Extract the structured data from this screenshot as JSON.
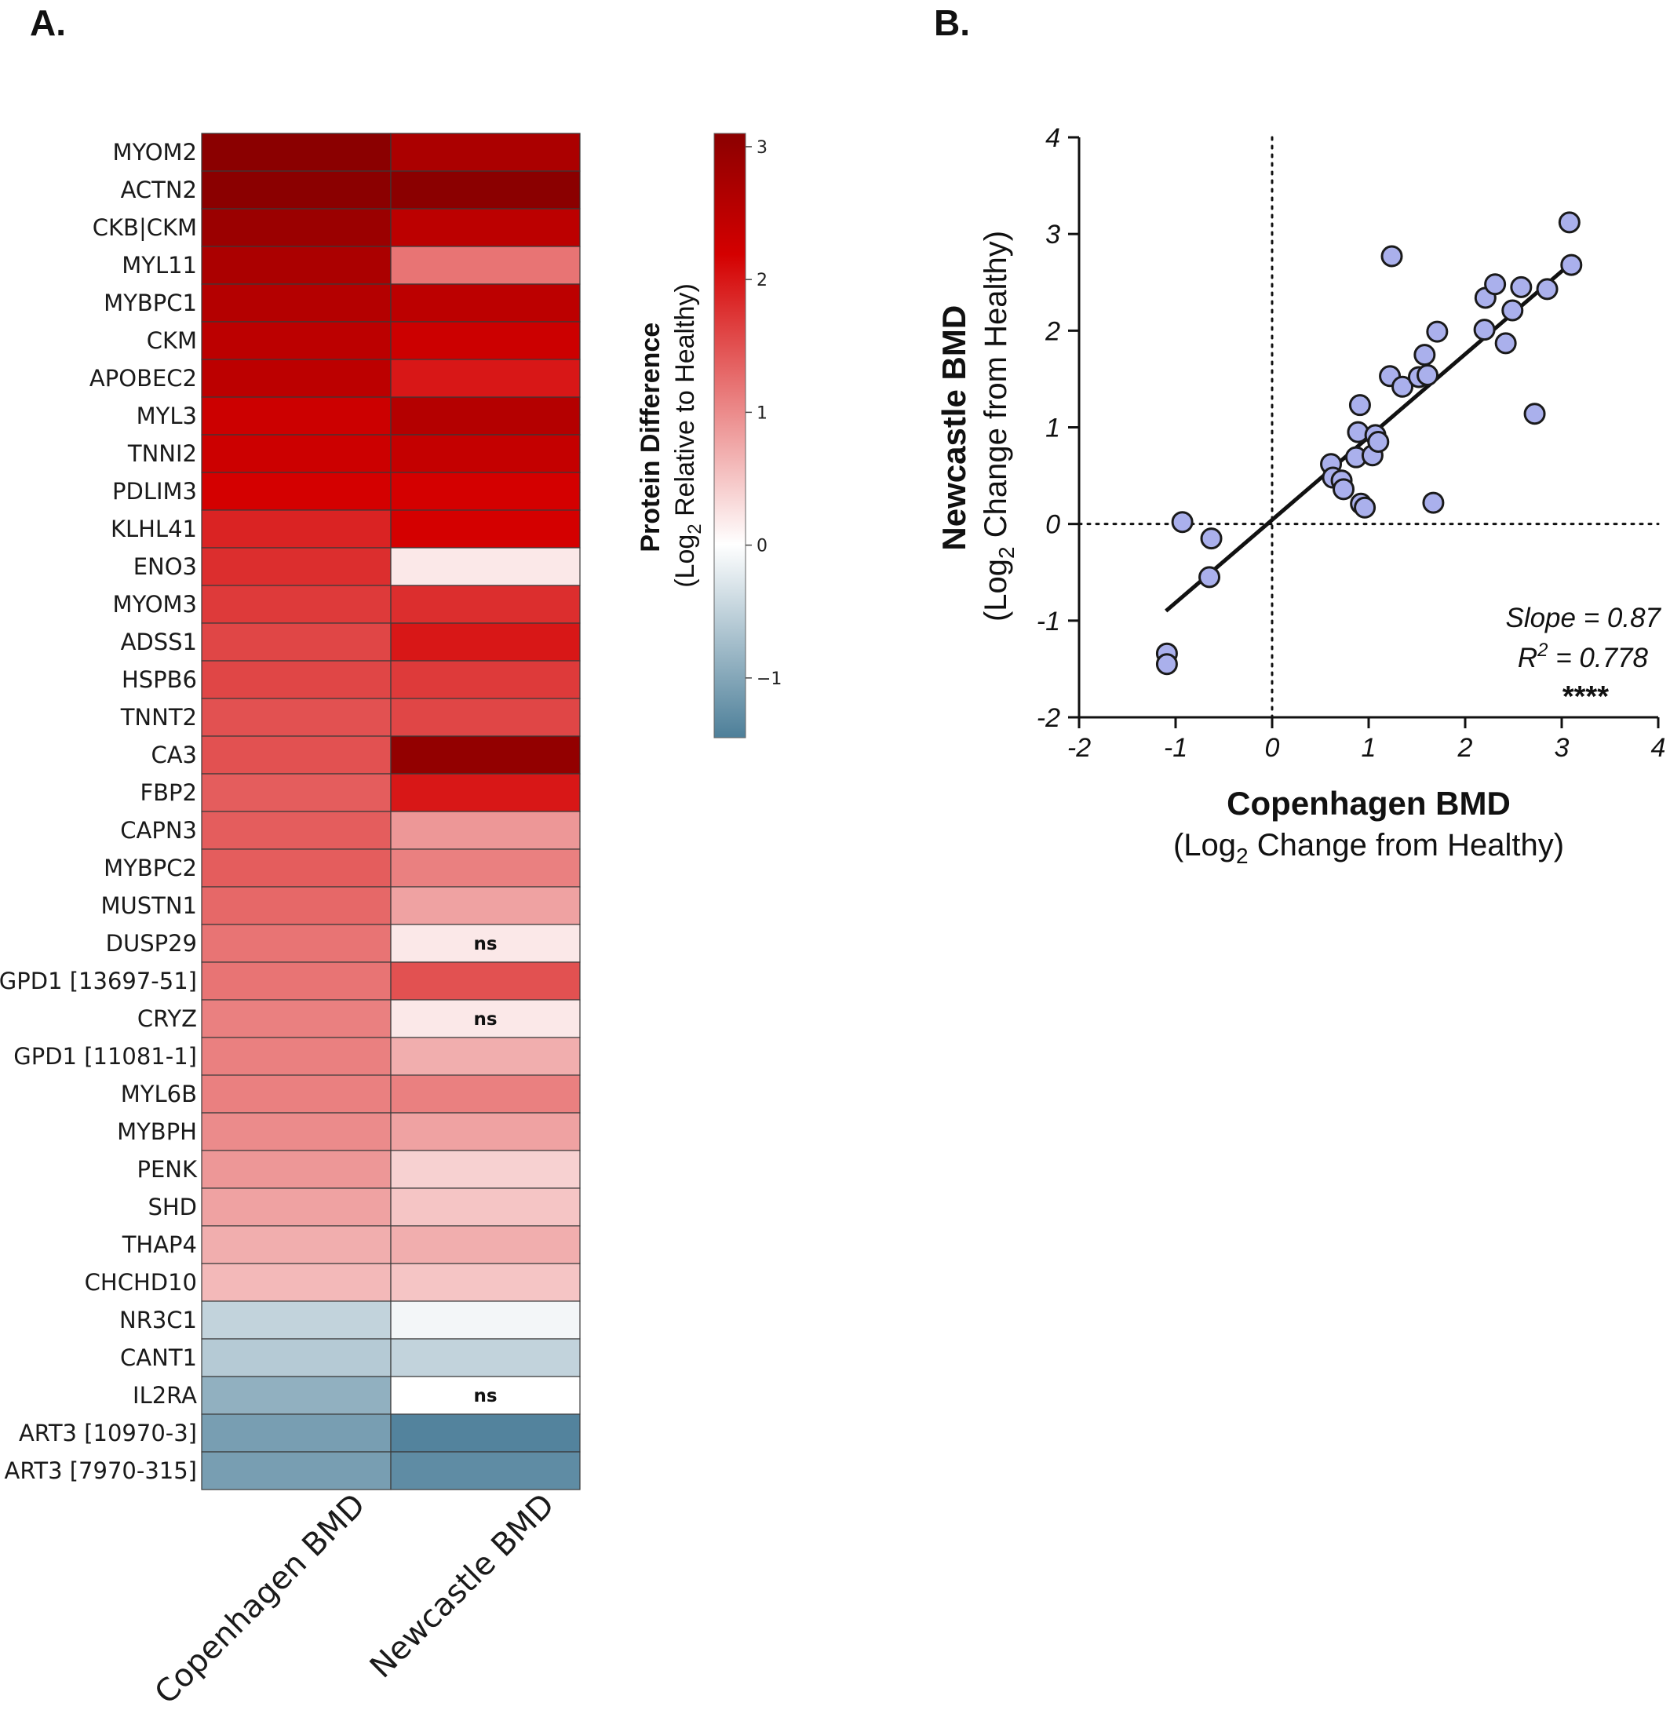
{
  "panel_a": {
    "letter": "A.",
    "chart_data": {
      "type": "heatmap",
      "columns": [
        "Copenhagen BMD",
        "Newcastle BMD"
      ],
      "rows": [
        "MYOM2",
        "ACTN2",
        "CKB|CKM",
        "MYL11",
        "MYBPC1",
        "CKM",
        "APOBEC2",
        "MYL3",
        "TNNI2",
        "PDLIM3",
        "KLHL41",
        "ENO3",
        "MYOM3",
        "ADSS1",
        "HSPB6",
        "TNNT2",
        "CA3",
        "FBP2",
        "CAPN3",
        "MYBPC2",
        "MUSTN1",
        "DUSP29",
        "GPD1 [13697-51]",
        "CRYZ",
        "GPD1 [11081-1]",
        "MYL6B",
        "MYBPH",
        "PENK",
        "SHD",
        "THAP4",
        "CHCHD10",
        "NR3C1",
        "CANT1",
        "IL2RA",
        "ART3 [10970-3]",
        "ART3 [7970-315]"
      ],
      "values": [
        [
          3.1,
          2.7
        ],
        [
          3.1,
          3.1
        ],
        [
          2.9,
          2.5
        ],
        [
          2.7,
          1.2
        ],
        [
          2.6,
          2.5
        ],
        [
          2.5,
          2.3
        ],
        [
          2.5,
          2.0
        ],
        [
          2.3,
          2.6
        ],
        [
          2.3,
          2.4
        ],
        [
          2.2,
          2.2
        ],
        [
          1.9,
          2.2
        ],
        [
          1.8,
          0.2
        ],
        [
          1.7,
          1.8
        ],
        [
          1.6,
          2.0
        ],
        [
          1.6,
          1.7
        ],
        [
          1.5,
          1.6
        ],
        [
          1.5,
          3.0
        ],
        [
          1.4,
          2.0
        ],
        [
          1.4,
          0.9
        ],
        [
          1.4,
          1.1
        ],
        [
          1.3,
          0.8
        ],
        [
          1.2,
          0.2
        ],
        [
          1.2,
          1.5
        ],
        [
          1.1,
          0.2
        ],
        [
          1.1,
          0.7
        ],
        [
          1.1,
          1.1
        ],
        [
          1.0,
          0.8
        ],
        [
          0.9,
          0.4
        ],
        [
          0.8,
          0.5
        ],
        [
          0.7,
          0.7
        ],
        [
          0.6,
          0.5
        ],
        [
          -0.5,
          -0.1
        ],
        [
          -0.6,
          -0.5
        ],
        [
          -0.9,
          0.0
        ],
        [
          -1.1,
          -1.4
        ],
        [
          -1.1,
          -1.3
        ]
      ],
      "ns": [
        {
          "row": "DUSP29",
          "column": "Newcastle BMD",
          "label": "ns"
        },
        {
          "row": "CRYZ",
          "column": "Newcastle BMD",
          "label": "ns"
        },
        {
          "row": "IL2RA",
          "column": "Newcastle BMD",
          "label": "ns"
        }
      ],
      "colorbar": {
        "title_bold": "Protein Difference",
        "title_prefix": "(Log",
        "title_sub": "2",
        "title_suffix": " Relative to Healthy)",
        "range": [
          -1.45,
          3.1
        ],
        "ticks": [
          3,
          2,
          1,
          0,
          -1
        ],
        "tick_labels": [
          "3",
          "2",
          "1",
          "0",
          "−1"
        ],
        "colors": {
          "high": "#8b0000",
          "mid_high": "#d40000",
          "zero": "#ffffff",
          "low": "#4d7f99"
        }
      }
    }
  },
  "panel_b": {
    "letter": "B.",
    "chart_data": {
      "type": "scatter",
      "xlabel_bold": "Copenhagen BMD",
      "xlabel_prefix": "(Log",
      "xlabel_sub": "2",
      "xlabel_suffix": " Change from Healthy)",
      "ylabel_bold": "Newcastle BMD",
      "ylabel_prefix": "(Log",
      "ylabel_sub": "2",
      "ylabel_suffix": " Change from Healthy)",
      "xlim": [
        -2,
        4
      ],
      "ylim": [
        -2,
        4
      ],
      "xticks": [
        -2,
        -1,
        0,
        1,
        2,
        3,
        4
      ],
      "yticks": [
        -2,
        -1,
        0,
        1,
        2,
        3,
        4
      ],
      "reference_lines": {
        "x": 0,
        "y": 0,
        "style": "dotted"
      },
      "point_color": "#aab0ec",
      "points": [
        {
          "x": -1.09,
          "y": -1.34
        },
        {
          "x": -1.09,
          "y": -1.45
        },
        {
          "x": -0.93,
          "y": 0.02
        },
        {
          "x": -0.63,
          "y": -0.15
        },
        {
          "x": -0.65,
          "y": -0.55
        },
        {
          "x": 0.61,
          "y": 0.62
        },
        {
          "x": 0.63,
          "y": 0.48
        },
        {
          "x": 0.72,
          "y": 0.45
        },
        {
          "x": 0.74,
          "y": 0.36
        },
        {
          "x": 0.87,
          "y": 0.69
        },
        {
          "x": 0.89,
          "y": 0.95
        },
        {
          "x": 0.91,
          "y": 1.23
        },
        {
          "x": 0.92,
          "y": 0.21
        },
        {
          "x": 0.96,
          "y": 0.17
        },
        {
          "x": 1.04,
          "y": 0.71
        },
        {
          "x": 1.07,
          "y": 0.92
        },
        {
          "x": 1.1,
          "y": 0.85
        },
        {
          "x": 1.22,
          "y": 1.53
        },
        {
          "x": 1.24,
          "y": 2.77
        },
        {
          "x": 1.35,
          "y": 1.42
        },
        {
          "x": 1.52,
          "y": 1.52
        },
        {
          "x": 1.58,
          "y": 1.75
        },
        {
          "x": 1.61,
          "y": 1.54
        },
        {
          "x": 1.67,
          "y": 0.22
        },
        {
          "x": 1.71,
          "y": 1.99
        },
        {
          "x": 2.2,
          "y": 2.01
        },
        {
          "x": 2.21,
          "y": 2.34
        },
        {
          "x": 2.31,
          "y": 2.48
        },
        {
          "x": 2.42,
          "y": 1.87
        },
        {
          "x": 2.49,
          "y": 2.21
        },
        {
          "x": 2.58,
          "y": 2.45
        },
        {
          "x": 2.72,
          "y": 1.14
        },
        {
          "x": 2.85,
          "y": 2.43
        },
        {
          "x": 3.08,
          "y": 3.12
        },
        {
          "x": 3.1,
          "y": 2.68
        }
      ],
      "fit_line": {
        "slope": 0.87,
        "x_range": [
          -1.1,
          3.1
        ],
        "y_start": -0.9,
        "y_end": 2.7
      },
      "annotation": {
        "slope_text": "Slope = 0.87",
        "r2_prefix": "R",
        "r2_sup": "2",
        "r2_suffix": " = 0.778",
        "significance": "****"
      }
    }
  }
}
